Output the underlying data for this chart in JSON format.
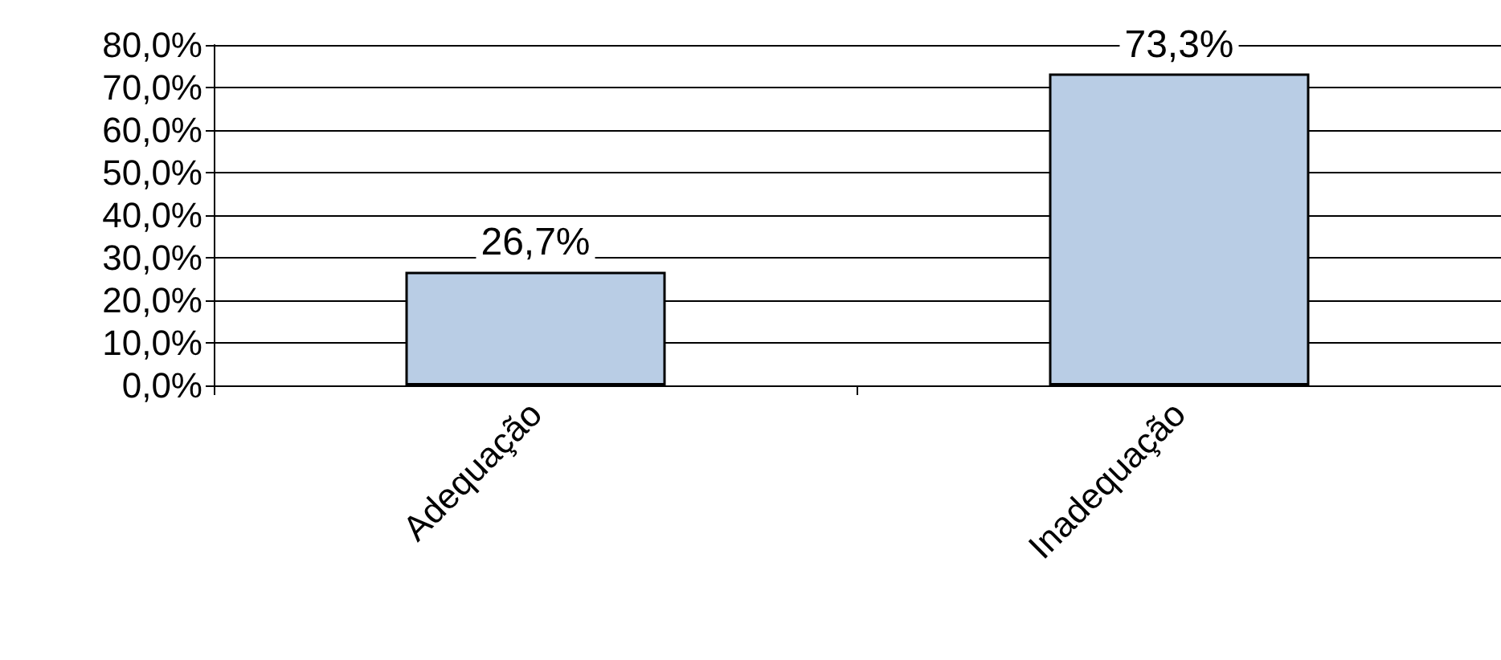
{
  "chart_data": {
    "type": "bar",
    "categories": [
      "Adequação",
      "Inadequação"
    ],
    "values": [
      26.7,
      73.3
    ],
    "value_labels": [
      "26,7%",
      "73,3%"
    ],
    "color": "#b9cde5",
    "ylim": [
      0,
      80
    ],
    "yticks": [
      {
        "value": 0,
        "label": "0,0%"
      },
      {
        "value": 10,
        "label": "10,0%"
      },
      {
        "value": 20,
        "label": "20,0%"
      },
      {
        "value": 30,
        "label": "30,0%"
      },
      {
        "value": 40,
        "label": "40,0%"
      },
      {
        "value": 50,
        "label": "50,0%"
      },
      {
        "value": 60,
        "label": "60,0%"
      },
      {
        "value": 70,
        "label": "70,0%"
      },
      {
        "value": 80,
        "label": "80,0%"
      }
    ],
    "grid": "y"
  }
}
